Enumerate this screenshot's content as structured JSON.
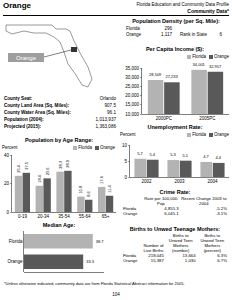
{
  "header": {
    "county": "Orange",
    "profile": "Florida Education and Community Data Profile",
    "section": "Community Data*"
  },
  "map_label": "Orange",
  "population_density": {
    "title": "Population Density (per Sq. Mile):",
    "rows": [
      [
        "Florida",
        "296"
      ],
      [
        "Orange",
        "1,117"
      ]
    ],
    "rank_label": "Rank in State",
    "rank": "6"
  },
  "county_info": {
    "rows": [
      [
        "County Seat:",
        "Orlando"
      ],
      [
        "County Land Area (Sq. Miles):",
        "907.5"
      ],
      [
        "County Water Area (Sq. Miles):",
        "96.1"
      ],
      [
        "Population (2004):",
        "1,013,937"
      ],
      [
        "Projected (2015):",
        "1,363,086"
      ]
    ]
  },
  "crime_rate": {
    "title": "Crime Rate:",
    "columns": [
      "Rate per 100,000 Pop",
      "Recent Change 2003 to 2004"
    ],
    "rows": [
      [
        "Florida",
        "4,855.3",
        "-5.2%"
      ],
      [
        "Orange",
        "6,045.1",
        "-3.1%"
      ]
    ]
  },
  "births": {
    "title": "Births to Unwed Teenage Mothers:",
    "columns": [
      "Number of Live Births",
      "Births to Unwed Teen Mothers (number)",
      "Births to Unwed Teen Mothers (percent)"
    ],
    "rows": [
      [
        "Florida",
        "218,045",
        "13,664",
        "6.3%"
      ],
      [
        "Orange",
        "15,387",
        "1,030",
        "6.7%"
      ]
    ]
  },
  "footer": "*Unless otherwise indicated, community data are from Florida Statistical Abstract information for 2005.",
  "page": "104",
  "chart_data": [
    {
      "type": "bar",
      "title": "Per Capita Income ($):",
      "categories": [
        "2000PC",
        "2005PC"
      ],
      "series": [
        {
          "name": "Florida",
          "color": "#b3b3b3",
          "values": [
            28509,
            34001
          ],
          "value_labels": [
            "28,509",
            "34,001"
          ]
        },
        {
          "name": "Orange",
          "color": "#595959",
          "values": [
            27233,
            32957
          ],
          "value_labels": [
            "27,233",
            "32,957"
          ]
        }
      ],
      "ylim": [
        10000,
        35000
      ],
      "yticks": [
        {
          "value": 10000,
          "label": "10,000"
        },
        {
          "value": 15000,
          "label": "15,000"
        },
        {
          "value": 20000,
          "label": "20,000"
        },
        {
          "value": 25000,
          "label": "25,000"
        },
        {
          "value": 30000,
          "label": "30,000"
        },
        {
          "value": 35000,
          "label": "35,000"
        }
      ],
      "grid": false,
      "legend": "top right",
      "data_labels": true
    },
    {
      "type": "bar",
      "title": "Unemployment Rate:",
      "y_label": "Percent",
      "categories": [
        "2002",
        "2003",
        "2004"
      ],
      "series": [
        {
          "name": "Florida",
          "color": "#b3b3b3",
          "values": [
            5.7,
            5.3,
            4.7
          ]
        },
        {
          "name": "Orange",
          "color": "#595959",
          "values": [
            5.4,
            5.1,
            4.4
          ]
        }
      ],
      "ylim": [
        0,
        10
      ],
      "yticks": [
        0,
        5,
        10
      ],
      "grid": false,
      "legend": "top right",
      "data_labels": true
    },
    {
      "type": "bar",
      "title": "Population by Age Range:",
      "y_label": "Percent",
      "categories": [
        "0-19",
        "20-34",
        "35-54",
        "55-64",
        "65+"
      ],
      "series": [
        {
          "name": "Florida",
          "color": "#b3b3b3",
          "values": [
            25.4,
            18.4,
            28.3,
            10.8,
            17.6
          ]
        },
        {
          "name": "Orange",
          "color": "#595959",
          "values": [
            27.5,
            23.6,
            28.9,
            8.6,
            11.4
          ]
        }
      ],
      "ylim": [
        0,
        40
      ],
      "yticks": [
        0,
        20,
        40
      ],
      "grid": false,
      "legend": "top right",
      "data_labels": true
    },
    {
      "type": "bar",
      "orientation": "horizontal",
      "title": "Median Age:",
      "categories": [
        "Florida",
        "Orange"
      ],
      "values": [
        38.7,
        33.3
      ],
      "colors": [
        "#b3b3b3",
        "#595959"
      ],
      "xlim": [
        0,
        45
      ],
      "grid": false,
      "tick_labels": "y",
      "data_labels": true
    }
  ]
}
